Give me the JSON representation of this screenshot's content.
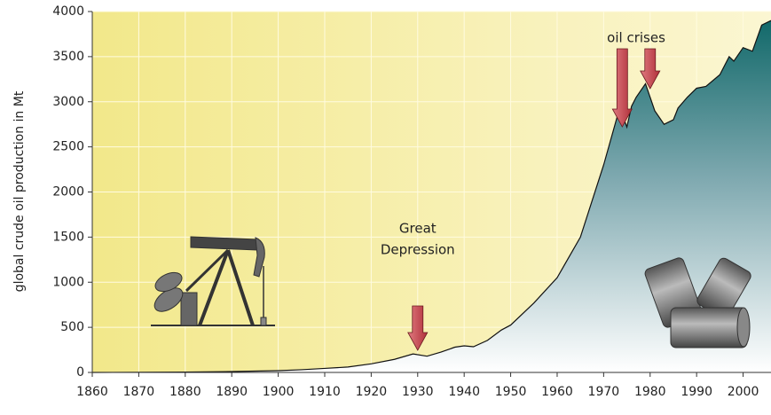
{
  "chart_data": {
    "type": "area",
    "y_label": "global crude oil production in Mt",
    "x": [
      1860,
      1870,
      1880,
      1890,
      1900,
      1905,
      1910,
      1915,
      1920,
      1925,
      1929,
      1932,
      1935,
      1938,
      1940,
      1942,
      1945,
      1948,
      1950,
      1955,
      1960,
      1965,
      1970,
      1973,
      1974,
      1975,
      1976,
      1977,
      1979,
      1980,
      1981,
      1983,
      1985,
      1986,
      1988,
      1990,
      1992,
      1995,
      1997,
      1998,
      2000,
      2002,
      2004,
      2006
    ],
    "values": [
      0,
      1,
      4,
      10,
      20,
      30,
      45,
      60,
      95,
      145,
      205,
      180,
      225,
      280,
      295,
      285,
      355,
      470,
      525,
      770,
      1050,
      1500,
      2300,
      2850,
      2860,
      2720,
      2950,
      3050,
      3200,
      3050,
      2900,
      2750,
      2800,
      2930,
      3050,
      3150,
      3170,
      3300,
      3500,
      3450,
      3600,
      3560,
      3850,
      3900
    ],
    "color": "#1e6e6e",
    "xlim": [
      1860,
      2006
    ],
    "ylim": [
      0,
      4000
    ],
    "xticks": [
      1860,
      1870,
      1880,
      1890,
      1900,
      1910,
      1920,
      1930,
      1940,
      1950,
      1960,
      1970,
      1980,
      1990,
      2000
    ],
    "yticks": [
      0,
      500,
      1000,
      1500,
      2000,
      2500,
      3000,
      3500,
      4000
    ],
    "grid": true,
    "annotations": [
      {
        "text": [
          "Great",
          "Depression"
        ],
        "arrows": [
          1930
        ]
      },
      {
        "text": [
          "oil crises"
        ],
        "arrows": [
          1974,
          1980
        ]
      }
    ]
  }
}
